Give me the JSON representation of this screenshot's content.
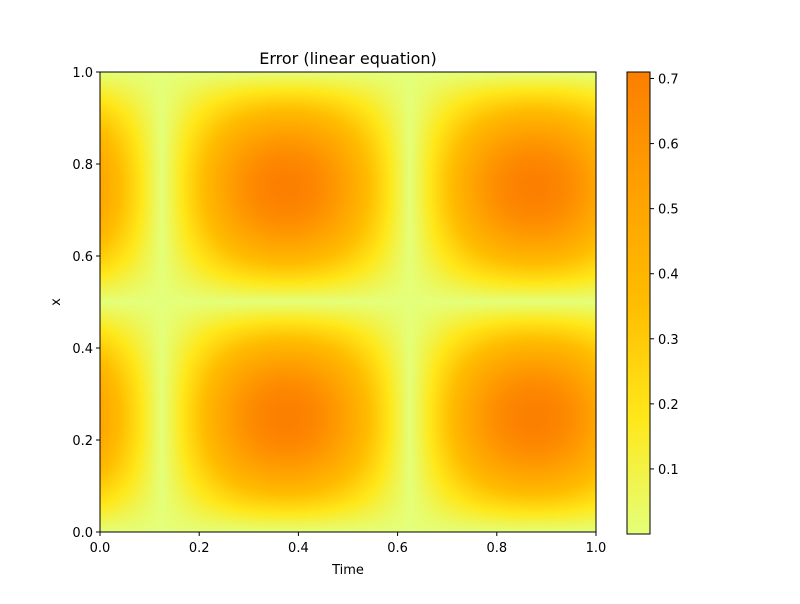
{
  "chart_data": {
    "type": "heatmap",
    "title": "Error (linear equation)",
    "xlabel": "Time",
    "ylabel": "x",
    "xlim": [
      0,
      1
    ],
    "ylim": [
      0,
      1
    ],
    "x_ticks": [
      0.0,
      0.2,
      0.4,
      0.6,
      0.8,
      1.0
    ],
    "x_tick_labels": [
      "0.0",
      "0.2",
      "0.4",
      "0.6",
      "0.8",
      "1.0"
    ],
    "y_ticks": [
      0.0,
      0.2,
      0.4,
      0.6,
      0.8,
      1.0
    ],
    "y_tick_labels": [
      "0.0",
      "0.2",
      "0.4",
      "0.6",
      "0.8",
      "1.0"
    ],
    "colorbar": {
      "min": 0.0,
      "max": 0.71,
      "ticks": [
        0.1,
        0.2,
        0.3,
        0.4,
        0.5,
        0.6,
        0.7
      ],
      "tick_labels": [
        "0.1",
        "0.2",
        "0.3",
        "0.4",
        "0.5",
        "0.6",
        "0.7"
      ],
      "colormap": "Wistia",
      "colors": [
        "#e4ff7a",
        "#ffe81a",
        "#ffbd00",
        "#ffa000",
        "#fc7f00"
      ]
    },
    "field": {
      "description_formula": "max * |sin(2*pi*(t - 0.125))| * |sin(2*pi*x)|",
      "amplitude": 0.71,
      "time_period": 0.5,
      "time_zero_crossings": [
        0.125,
        0.625
      ],
      "x_zero_crossings": [
        0.0,
        0.5,
        1.0
      ],
      "peaks": [
        {
          "t": 0.375,
          "x": 0.25,
          "value": 0.71
        },
        {
          "t": 0.375,
          "x": 0.75,
          "value": 0.71
        },
        {
          "t": 0.875,
          "x": 0.25,
          "value": 0.71
        },
        {
          "t": 0.875,
          "x": 0.75,
          "value": 0.71
        }
      ]
    }
  }
}
